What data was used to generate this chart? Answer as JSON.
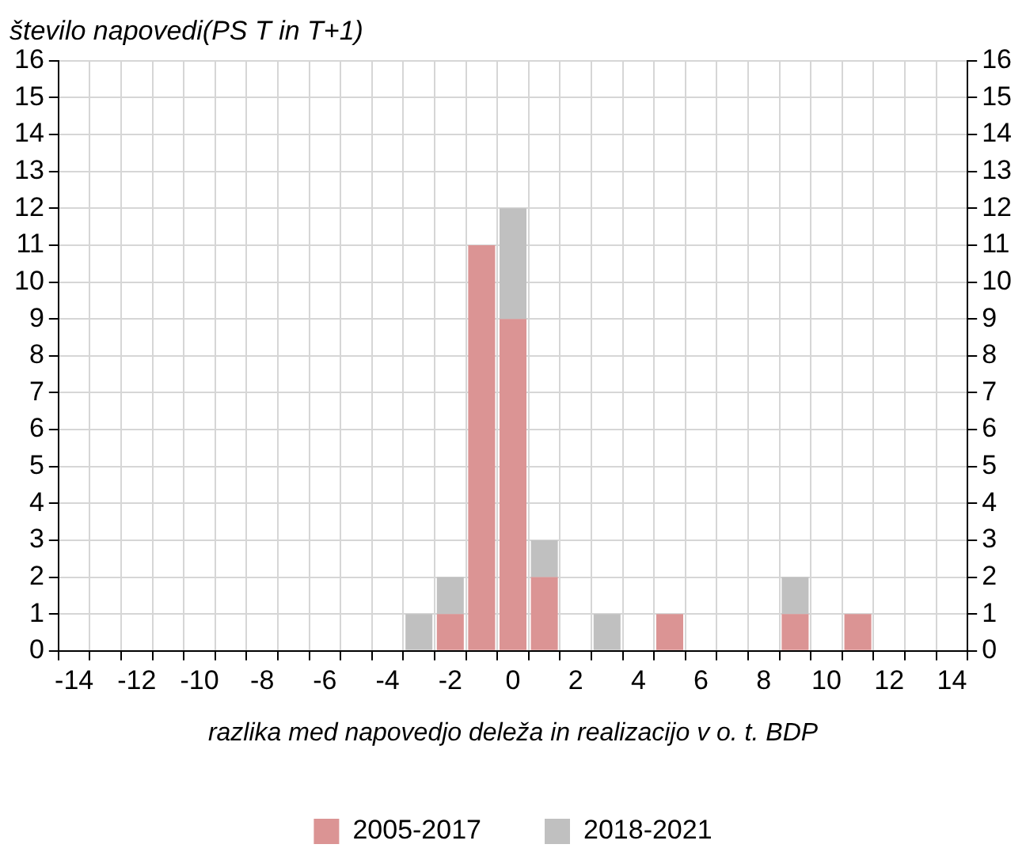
{
  "chart_data": {
    "type": "bar",
    "stacked": true,
    "ylabel": "število napovedi(PS T in T+1)",
    "xlabel": "razlika med napovedjo deleža in realizacijo v o. t. BDP",
    "categories": [
      "-14",
      null,
      "-12",
      null,
      "-10",
      null,
      "-8",
      null,
      "-6",
      null,
      "-4",
      null,
      "-2",
      null,
      "0",
      null,
      "2",
      null,
      "4",
      null,
      "6",
      null,
      "8",
      null,
      "10",
      null,
      "12",
      null,
      "14"
    ],
    "series": [
      {
        "name": "2005-2017",
        "color": "#db9494",
        "values": [
          0,
          0,
          0,
          0,
          0,
          0,
          0,
          0,
          0,
          0,
          0,
          0,
          1,
          11,
          9,
          2,
          0,
          0,
          0,
          1,
          0,
          0,
          0,
          1,
          0,
          1,
          0,
          0,
          0
        ]
      },
      {
        "name": "2018-2021",
        "color": "#c0c0c0",
        "values": [
          0,
          0,
          0,
          0,
          0,
          0,
          0,
          0,
          0,
          0,
          0,
          1,
          1,
          0,
          3,
          1,
          0,
          1,
          0,
          0,
          0,
          0,
          0,
          1,
          0,
          0,
          0,
          0,
          0
        ]
      }
    ],
    "ylim": [
      0,
      16
    ],
    "yticks": [
      0,
      1,
      2,
      3,
      4,
      5,
      6,
      7,
      8,
      9,
      10,
      11,
      12,
      13,
      14,
      15,
      16
    ],
    "y2lim": [
      0,
      16
    ],
    "y2ticks": [
      0,
      1,
      2,
      3,
      4,
      5,
      6,
      7,
      8,
      9,
      10,
      11,
      12,
      13,
      14,
      15,
      16
    ],
    "grid": true,
    "legend": "bottom"
  }
}
